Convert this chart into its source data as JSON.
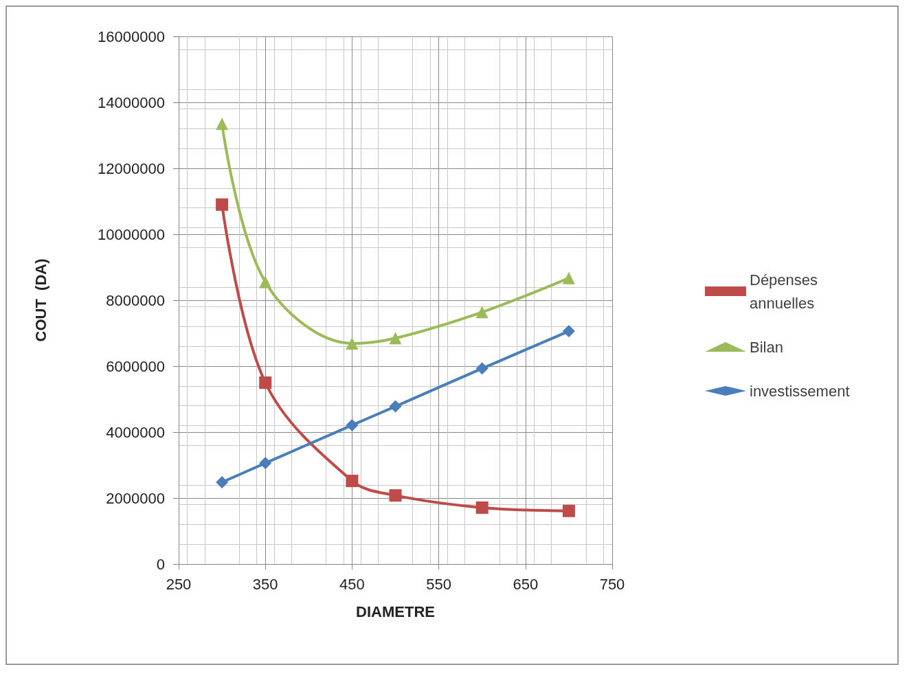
{
  "chart_data": {
    "type": "line",
    "xlabel": "DIAMETRE",
    "ylabel": "COUT  (DA)",
    "xlim": [
      250,
      750
    ],
    "xticks": [
      250,
      350,
      450,
      550,
      650,
      750
    ],
    "ylim": [
      0,
      16000000
    ],
    "yticks": [
      0,
      2000000,
      4000000,
      6000000,
      8000000,
      10000000,
      12000000,
      14000000,
      16000000
    ],
    "grid": true,
    "legend": "right",
    "series": [
      {
        "name": "Dépenses annuelles",
        "color": "#be4b48",
        "marker": "square",
        "x": [
          300,
          350,
          450,
          500,
          600,
          700
        ],
        "values": [
          10900000,
          5500000,
          2520000,
          2080000,
          1710000,
          1610000
        ]
      },
      {
        "name": "Bilan",
        "color": "#9bbb59",
        "marker": "triangle",
        "x": [
          300,
          350,
          450,
          500,
          600,
          700
        ],
        "values": [
          13350000,
          8550000,
          6690000,
          6850000,
          7640000,
          8670000
        ]
      },
      {
        "name": "investissement",
        "color": "#4a7ebb",
        "marker": "diamond",
        "x": [
          300,
          350,
          450,
          500,
          600,
          700
        ],
        "values": [
          2480000,
          3060000,
          4210000,
          4780000,
          5930000,
          7060000
        ]
      }
    ]
  }
}
